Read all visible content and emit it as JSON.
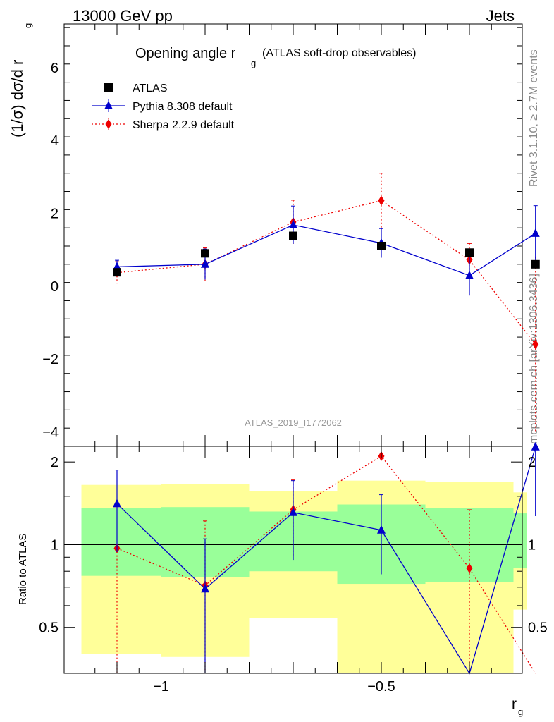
{
  "header": {
    "left": "13000 GeV pp",
    "right": "Jets"
  },
  "side_labels": {
    "top": "Rivet 3.1.10, ≥ 2.7M events",
    "bottom": "mcplots.cern.ch [arXiv:1306.3436]"
  },
  "colors": {
    "atlas": "#000000",
    "pythia": "#0000cc",
    "sherpa": "#ee0000",
    "band_inner": "#99ff99",
    "band_outer": "#ffff99"
  },
  "chart_data": [
    {
      "type": "scatter",
      "title_main": "Opening angle r",
      "title_sub": "g",
      "title_rest": "(ATLAS soft-drop observables)",
      "ylabel_main": "(1/σ) dσ/d r",
      "ylabel_sub": "g",
      "watermark": "ATLAS_2019_I1772062",
      "xlim": [
        -1.22,
        -0.18
      ],
      "ylim": [
        -4.4,
        7.2
      ],
      "yticks": [
        -4,
        -2,
        0,
        2,
        4,
        6
      ],
      "ytick_labels": [
        "−4",
        "−2",
        "0",
        "2",
        "4",
        "6"
      ],
      "legend_position": "top-left",
      "series": [
        {
          "name": "ATLAS",
          "marker": "square",
          "x": [
            -1.1,
            -0.9,
            -0.7,
            -0.5,
            -0.3,
            -0.15
          ],
          "y": [
            0.38,
            0.9,
            1.38,
            1.1,
            0.92,
            0.6
          ]
        },
        {
          "name": "Pythia 8.308 default",
          "marker": "triangle",
          "line": "solid",
          "x": [
            -1.1,
            -0.9,
            -0.7,
            -0.5,
            -0.3,
            -0.15
          ],
          "y": [
            0.53,
            0.6,
            1.68,
            1.18,
            0.29,
            1.45
          ],
          "err": [
            0.18,
            0.42,
            0.52,
            0.4,
            0.55,
            0.76
          ]
        },
        {
          "name": "Sherpa 2.2.9 default",
          "marker": "diamond",
          "line": "dotted",
          "x": [
            -1.1,
            -0.9,
            -0.7,
            -0.5,
            -0.3,
            -0.15
          ],
          "y": [
            0.37,
            0.6,
            1.76,
            2.35,
            0.72,
            -1.6
          ],
          "err": [
            0.3,
            0.45,
            0.6,
            0.75,
            0.45,
            2.4
          ]
        }
      ]
    },
    {
      "type": "scatter",
      "ylabel": "Ratio to ATLAS",
      "xlabel_main": "r",
      "xlabel_sub": "g",
      "xlim": [
        -1.22,
        -0.18
      ],
      "ylim": [
        0.34,
        2.28
      ],
      "yticks": [
        0.5,
        1,
        2
      ],
      "ytick_labels": [
        "0.5",
        "1",
        "2"
      ],
      "xticks": [
        -1.0,
        -0.5
      ],
      "xtick_labels": [
        "−1",
        "−0.5"
      ],
      "bands": {
        "edges": [
          -1.2,
          -1.0,
          -0.8,
          -0.6,
          -0.4,
          -0.2,
          -0.15
        ],
        "inner_lo": [
          0.77,
          0.76,
          0.8,
          0.72,
          0.73,
          0.82
        ],
        "inner_hi": [
          1.36,
          1.37,
          1.32,
          1.4,
          1.36,
          1.3
        ],
        "outer_lo": [
          0.4,
          0.39,
          0.54,
          0.34,
          0.34,
          0.58
        ],
        "outer_hi": [
          1.65,
          1.66,
          1.57,
          1.71,
          1.69,
          1.55
        ]
      },
      "series": [
        {
          "name": "Pythia 8.308 default",
          "marker": "triangle",
          "line": "solid",
          "x": [
            -1.1,
            -0.9,
            -0.7,
            -0.5,
            -0.3,
            -0.15
          ],
          "y": [
            1.41,
            0.69,
            1.31,
            1.13,
            0.31,
            2.27
          ],
          "err_lo": [
            0.47,
            0.36,
            0.43,
            0.35,
            0.0,
            1.0
          ],
          "err_hi": [
            0.46,
            0.36,
            0.4,
            0.39,
            0.0,
            0.0
          ]
        },
        {
          "name": "Sherpa 2.2.9 default",
          "marker": "diamond",
          "line": "dotted",
          "x": [
            -1.1,
            -0.9,
            -0.7,
            -0.5,
            -0.3,
            -0.15
          ],
          "y": [
            0.97,
            0.71,
            1.34,
            2.1,
            0.82,
            0.3
          ],
          "err_lo": [
            0.64,
            0.36,
            0.43,
            0.0,
            0.48,
            0.0
          ],
          "err_hi": [
            0.0,
            0.51,
            0.38,
            0.0,
            0.52,
            0.0
          ]
        }
      ]
    }
  ]
}
